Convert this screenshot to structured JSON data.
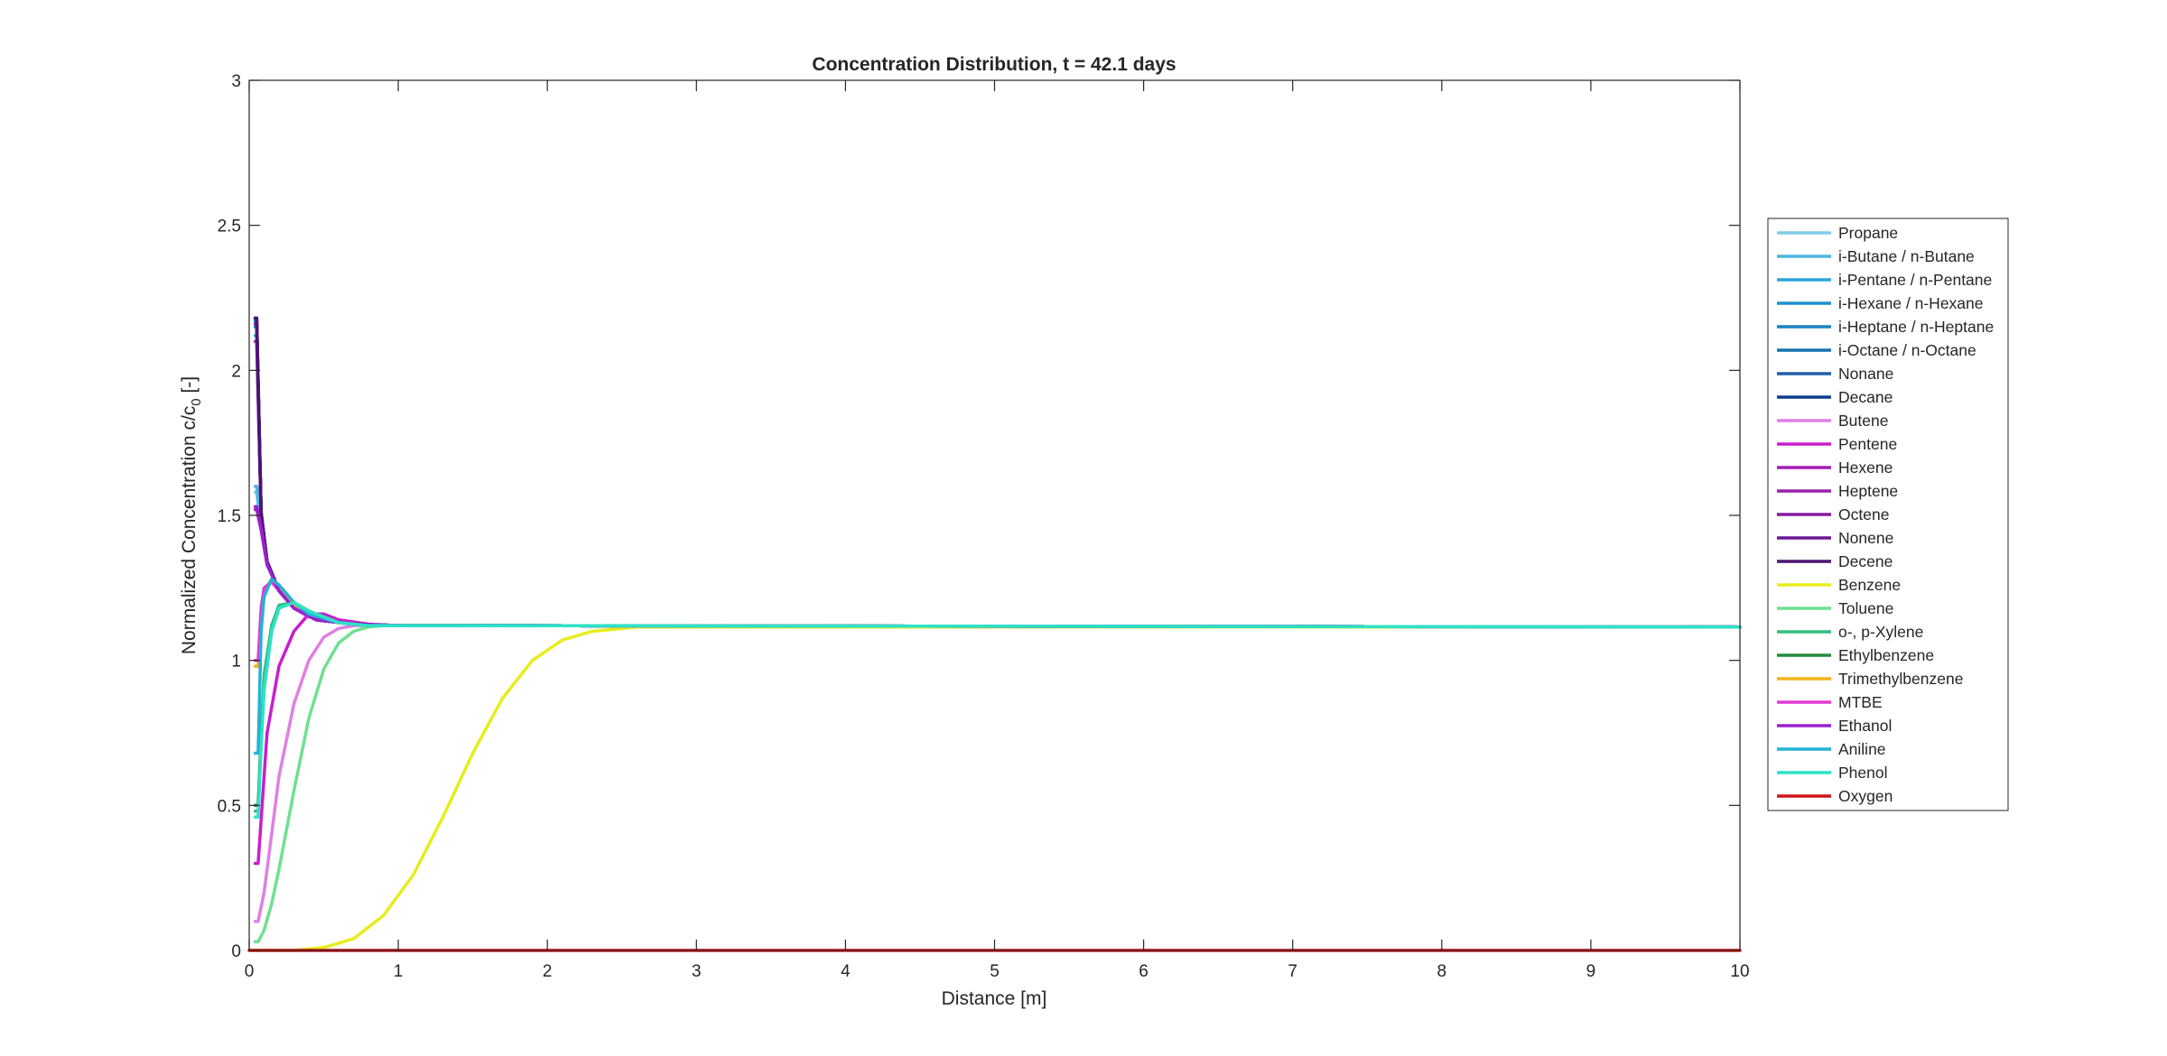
{
  "chart_data": {
    "type": "line",
    "title": "Concentration Distribution, t =  42.1 days",
    "xlabel": "Distance [m]",
    "ylabel": "Normalized Concentration c/c",
    "ylabel_sub": "0",
    "ylabel_suffix": " [-]",
    "xlim": [
      0,
      10
    ],
    "ylim": [
      0,
      3
    ],
    "x_ticks": [
      0,
      1,
      2,
      3,
      4,
      5,
      6,
      7,
      8,
      9,
      10
    ],
    "x_tick_labels": [
      "0",
      "1",
      "2",
      "3",
      "4",
      "5",
      "6",
      "7",
      "8",
      "9",
      "10"
    ],
    "y_ticks": [
      0,
      0.5,
      1,
      1.5,
      2,
      2.5,
      3
    ],
    "y_tick_labels": [
      "0",
      "0.5",
      "1",
      "1.5",
      "2",
      "2.5",
      "3"
    ],
    "grid": false,
    "legend_position": "outside-right",
    "series": [
      {
        "name": "Propane",
        "color": "#7ecbe6",
        "x": [
          0.04,
          0.05,
          0.08,
          0.12,
          0.2,
          0.3,
          0.45,
          0.7,
          1.0,
          10.0
        ],
        "y": [
          1.58,
          1.58,
          1.45,
          1.33,
          1.24,
          1.18,
          1.14,
          1.125,
          1.12,
          1.115
        ]
      },
      {
        "name": "i-Butane / n-Butane",
        "color": "#4fb6df",
        "x": [
          0.04,
          0.05,
          0.08,
          0.12,
          0.2,
          0.3,
          0.45,
          0.7,
          1.0,
          10.0
        ],
        "y": [
          1.6,
          1.6,
          1.46,
          1.34,
          1.24,
          1.18,
          1.14,
          1.125,
          1.12,
          1.115
        ]
      },
      {
        "name": "i-Pentane / n-Pentane",
        "color": "#2aa5dc",
        "x": [
          0.04,
          0.05,
          0.08,
          0.12,
          0.2,
          0.3,
          0.45,
          0.7,
          1.0,
          10.0
        ],
        "y": [
          2.12,
          2.12,
          1.5,
          1.34,
          1.24,
          1.18,
          1.14,
          1.125,
          1.12,
          1.115
        ]
      },
      {
        "name": "i-Hexane / n-Hexane",
        "color": "#1e90cf",
        "x": [
          0.04,
          0.05,
          0.08,
          0.12,
          0.2,
          0.3,
          0.45,
          0.7,
          1.0,
          10.0
        ],
        "y": [
          2.15,
          2.15,
          1.5,
          1.34,
          1.24,
          1.18,
          1.14,
          1.125,
          1.12,
          1.115
        ]
      },
      {
        "name": "i-Heptane / n-Heptane",
        "color": "#1a82c4",
        "x": [
          0.04,
          0.05,
          0.08,
          0.12,
          0.2,
          0.3,
          0.45,
          0.7,
          1.0,
          10.0
        ],
        "y": [
          2.17,
          2.17,
          1.51,
          1.34,
          1.24,
          1.18,
          1.14,
          1.125,
          1.12,
          1.115
        ]
      },
      {
        "name": "i-Octane / n-Octane",
        "color": "#1574b0",
        "x": [
          0.04,
          0.05,
          0.08,
          0.12,
          0.2,
          0.3,
          0.45,
          0.7,
          1.0,
          10.0
        ],
        "y": [
          2.17,
          2.17,
          1.51,
          1.34,
          1.24,
          1.18,
          1.14,
          1.125,
          1.12,
          1.115
        ]
      },
      {
        "name": "Nonane",
        "color": "#1f5fa8",
        "x": [
          0.04,
          0.05,
          0.08,
          0.12,
          0.2,
          0.3,
          0.45,
          0.7,
          1.0,
          10.0
        ],
        "y": [
          2.18,
          2.18,
          1.51,
          1.34,
          1.24,
          1.18,
          1.14,
          1.125,
          1.12,
          1.115
        ]
      },
      {
        "name": "Decane",
        "color": "#0d3f8c",
        "x": [
          0.04,
          0.05,
          0.08,
          0.12,
          0.2,
          0.3,
          0.45,
          0.7,
          1.0,
          10.0
        ],
        "y": [
          2.18,
          2.18,
          1.51,
          1.34,
          1.24,
          1.18,
          1.14,
          1.125,
          1.12,
          1.115
        ]
      },
      {
        "name": "Butene",
        "color": "#e07fe3",
        "x": [
          0.04,
          0.06,
          0.1,
          0.15,
          0.2,
          0.3,
          0.4,
          0.5,
          0.6,
          0.7,
          0.8,
          1.0,
          10.0
        ],
        "y": [
          0.1,
          0.1,
          0.2,
          0.4,
          0.6,
          0.85,
          1.0,
          1.08,
          1.11,
          1.12,
          1.12,
          1.12,
          1.115
        ]
      },
      {
        "name": "Pentene",
        "color": "#c81ecf",
        "x": [
          0.04,
          0.06,
          0.08,
          0.12,
          0.2,
          0.3,
          0.4,
          0.5,
          0.6,
          0.8,
          1.0,
          10.0
        ],
        "y": [
          0.3,
          0.3,
          0.45,
          0.75,
          0.98,
          1.1,
          1.16,
          1.16,
          1.14,
          1.125,
          1.12,
          1.115
        ]
      },
      {
        "name": "Hexene",
        "color": "#a51cb8",
        "x": [
          0.04,
          0.05,
          0.08,
          0.12,
          0.2,
          0.3,
          0.45,
          0.7,
          1.0,
          10.0
        ],
        "y": [
          1.52,
          1.52,
          1.45,
          1.33,
          1.24,
          1.18,
          1.14,
          1.125,
          1.12,
          1.115
        ]
      },
      {
        "name": "Heptene",
        "color": "#9a22a8",
        "x": [
          0.04,
          0.05,
          0.08,
          0.12,
          0.2,
          0.3,
          0.45,
          0.7,
          1.0,
          10.0
        ],
        "y": [
          2.1,
          2.1,
          1.5,
          1.34,
          1.24,
          1.18,
          1.14,
          1.125,
          1.12,
          1.115
        ]
      },
      {
        "name": "Octene",
        "color": "#8a1aa3",
        "x": [
          0.04,
          0.05,
          0.08,
          0.12,
          0.2,
          0.3,
          0.45,
          0.7,
          1.0,
          10.0
        ],
        "y": [
          2.16,
          2.16,
          1.51,
          1.34,
          1.24,
          1.18,
          1.14,
          1.125,
          1.12,
          1.115
        ]
      },
      {
        "name": "Nonene",
        "color": "#6a1796",
        "x": [
          0.04,
          0.05,
          0.08,
          0.12,
          0.2,
          0.3,
          0.45,
          0.7,
          1.0,
          10.0
        ],
        "y": [
          2.18,
          2.18,
          1.51,
          1.34,
          1.24,
          1.18,
          1.14,
          1.125,
          1.12,
          1.115
        ]
      },
      {
        "name": "Decene",
        "color": "#4b1470",
        "x": [
          0.04,
          0.05,
          0.08,
          0.12,
          0.2,
          0.3,
          0.45,
          0.7,
          1.0,
          10.0
        ],
        "y": [
          2.18,
          2.18,
          1.51,
          1.34,
          1.24,
          1.18,
          1.14,
          1.125,
          1.12,
          1.115
        ]
      },
      {
        "name": "Benzene",
        "color": "#e8ec1c",
        "x": [
          0.0,
          0.3,
          0.5,
          0.7,
          0.9,
          1.1,
          1.3,
          1.5,
          1.7,
          1.9,
          2.1,
          2.3,
          2.6,
          3.0,
          10.0
        ],
        "y": [
          0.0,
          0.0,
          0.01,
          0.04,
          0.12,
          0.26,
          0.46,
          0.68,
          0.87,
          1.0,
          1.07,
          1.1,
          1.115,
          1.115,
          1.115
        ]
      },
      {
        "name": "Toluene",
        "color": "#6fe08f",
        "x": [
          0.04,
          0.06,
          0.1,
          0.15,
          0.2,
          0.3,
          0.4,
          0.5,
          0.6,
          0.7,
          0.8,
          0.9,
          1.0,
          10.0
        ],
        "y": [
          0.03,
          0.03,
          0.07,
          0.16,
          0.28,
          0.55,
          0.8,
          0.97,
          1.06,
          1.1,
          1.115,
          1.12,
          1.12,
          1.115
        ]
      },
      {
        "name": "o-, p-Xylene",
        "color": "#2fbf7a",
        "x": [
          0.04,
          0.06,
          0.08,
          0.1,
          0.15,
          0.2,
          0.3,
          0.4,
          0.6,
          0.8,
          1.0,
          10.0
        ],
        "y": [
          0.48,
          0.48,
          0.75,
          0.95,
          1.12,
          1.19,
          1.2,
          1.17,
          1.13,
          1.12,
          1.12,
          1.115
        ]
      },
      {
        "name": "Ethylbenzene",
        "color": "#228b3c",
        "x": [
          0.04,
          0.06,
          0.08,
          0.1,
          0.15,
          0.2,
          0.3,
          0.4,
          0.6,
          0.8,
          1.0,
          10.0
        ],
        "y": [
          0.5,
          0.5,
          0.72,
          0.9,
          1.1,
          1.18,
          1.2,
          1.17,
          1.13,
          1.12,
          1.12,
          1.115
        ]
      },
      {
        "name": "Trimethylbenzene",
        "color": "#f5b21a",
        "x": [
          0.04,
          0.06,
          0.08,
          0.1,
          0.15,
          0.2,
          0.3,
          0.4,
          0.6,
          0.8,
          1.0,
          10.0
        ],
        "y": [
          0.98,
          0.98,
          1.15,
          1.24,
          1.28,
          1.25,
          1.19,
          1.15,
          1.13,
          1.12,
          1.12,
          1.115
        ]
      },
      {
        "name": "MTBE",
        "color": "#e23ad3",
        "x": [
          0.04,
          0.06,
          0.08,
          0.1,
          0.15,
          0.2,
          0.3,
          0.4,
          0.6,
          0.8,
          1.0,
          10.0
        ],
        "y": [
          1.0,
          1.0,
          1.18,
          1.25,
          1.27,
          1.24,
          1.18,
          1.15,
          1.13,
          1.12,
          1.12,
          1.115
        ]
      },
      {
        "name": "Ethanol",
        "color": "#9a20d0",
        "x": [
          0.04,
          0.05,
          0.08,
          0.12,
          0.2,
          0.3,
          0.45,
          0.7,
          1.0,
          10.0
        ],
        "y": [
          1.53,
          1.53,
          1.46,
          1.33,
          1.24,
          1.18,
          1.14,
          1.125,
          1.12,
          1.115
        ]
      },
      {
        "name": "Aniline",
        "color": "#22b2d6",
        "x": [
          0.04,
          0.06,
          0.08,
          0.1,
          0.15,
          0.2,
          0.3,
          0.4,
          0.6,
          0.8,
          1.0,
          10.0
        ],
        "y": [
          0.68,
          0.68,
          1.1,
          1.22,
          1.28,
          1.26,
          1.2,
          1.16,
          1.13,
          1.12,
          1.12,
          1.115
        ]
      },
      {
        "name": "Phenol",
        "color": "#2ee2c8",
        "x": [
          0.04,
          0.06,
          0.08,
          0.1,
          0.15,
          0.2,
          0.3,
          0.4,
          0.6,
          0.8,
          1.0,
          10.0
        ],
        "y": [
          0.46,
          0.46,
          0.7,
          0.9,
          1.1,
          1.18,
          1.2,
          1.17,
          1.13,
          1.12,
          1.12,
          1.115
        ]
      },
      {
        "name": "Oxygen",
        "color": "#d0141a",
        "x": [
          0.0,
          10.0
        ],
        "y": [
          0.0,
          0.0
        ]
      }
    ]
  }
}
